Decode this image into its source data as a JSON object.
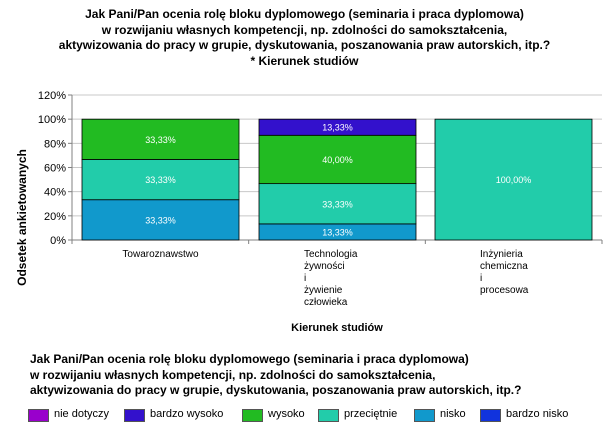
{
  "title_lines": [
    "Jak Pani/Pan ocenia rolę bloku dyplomowego (seminaria i praca dyplomowa)",
    "w rozwijaniu własnych kompetencji, np. zdolności do samokształcenia,",
    "aktywizowania do pracy w grupie, dyskutowania, poszanowania praw autorskich, itp.?",
    "* Kierunek studiów"
  ],
  "legend_title_lines": [
    "Jak Pani/Pan ocenia rolę bloku dyplomowego (seminaria i praca dyplomowa)",
    "w rozwijaniu własnych kompetencji, np. zdolności do samokształcenia,",
    "aktywizowania do pracy w grupie, dyskutowania, poszanowania praw autorskich, itp.?"
  ],
  "chart_data": {
    "type": "bar",
    "stacked": true,
    "xlabel": "Kierunek studiów",
    "ylabel": "Odsetek ankietowanych",
    "ylim": [
      0,
      120
    ],
    "y_ticks": [
      "0%",
      "20%",
      "40%",
      "60%",
      "80%",
      "100%",
      "120%"
    ],
    "grid": true,
    "legend_position": "bottom",
    "categories": [
      [
        "Towaroznawstwo"
      ],
      [
        "Technologia",
        "żywności",
        "i",
        "żywienie",
        "człowieka"
      ],
      [
        "Inżynieria",
        "chemiczna",
        "i",
        "procesowa"
      ]
    ],
    "series": [
      {
        "name": "nie dotyczy",
        "color": "#9900cc",
        "values": [
          0,
          0,
          0
        ],
        "labels": [
          "",
          "",
          ""
        ]
      },
      {
        "name": "bardzo wysoko",
        "color": "#3311cc",
        "values": [
          0,
          13.33,
          0
        ],
        "labels": [
          "",
          "13,33%",
          ""
        ]
      },
      {
        "name": "wysoko",
        "color": "#22bb22",
        "values": [
          33.33,
          40.0,
          0
        ],
        "labels": [
          "33,33%",
          "40,00%",
          ""
        ]
      },
      {
        "name": "przeciętnie",
        "color": "#22ccaa",
        "values": [
          33.33,
          33.33,
          100.0
        ],
        "labels": [
          "33,33%",
          "33,33%",
          "100,00%"
        ]
      },
      {
        "name": "nisko",
        "color": "#1199cc",
        "values": [
          33.33,
          13.33,
          0
        ],
        "labels": [
          "33,33%",
          "13,33%",
          ""
        ]
      },
      {
        "name": "bardzo nisko",
        "color": "#1133dd",
        "values": [
          0,
          0,
          0
        ],
        "labels": [
          "",
          "",
          ""
        ]
      }
    ]
  }
}
